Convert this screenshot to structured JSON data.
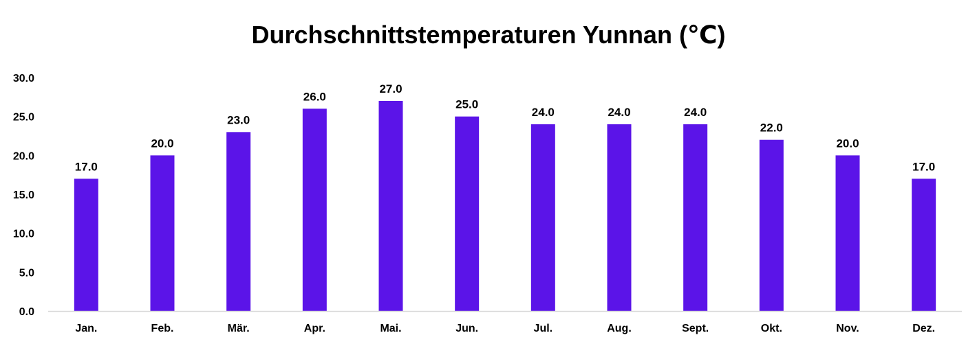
{
  "chart_data": {
    "type": "bar",
    "title": "Durchschnittstemperaturen Yunnan (℃)",
    "categories": [
      "Jan.",
      "Feb.",
      "Mär.",
      "Apr.",
      "Mai.",
      "Jun.",
      "Jul.",
      "Aug.",
      "Sept.",
      "Okt.",
      "Nov.",
      "Dez."
    ],
    "values": [
      17.0,
      20.0,
      23.0,
      26.0,
      27.0,
      25.0,
      24.0,
      24.0,
      24.0,
      22.0,
      20.0,
      17.0
    ],
    "value_labels": [
      "17.0",
      "20.0",
      "23.0",
      "26.0",
      "27.0",
      "25.0",
      "24.0",
      "24.0",
      "24.0",
      "22.0",
      "20.0",
      "17.0"
    ],
    "yticks": [
      0,
      5,
      10,
      15,
      20,
      25,
      30
    ],
    "ytick_labels": [
      "0.0",
      "5.0",
      "10.0",
      "15.0",
      "20.0",
      "25.0",
      "30.0"
    ],
    "ylim": [
      0,
      30
    ],
    "xlabel": "",
    "ylabel": "",
    "grid": false,
    "legend": "none",
    "bar_color": "#5b14e8",
    "axis_color": "#d9d9d9"
  }
}
